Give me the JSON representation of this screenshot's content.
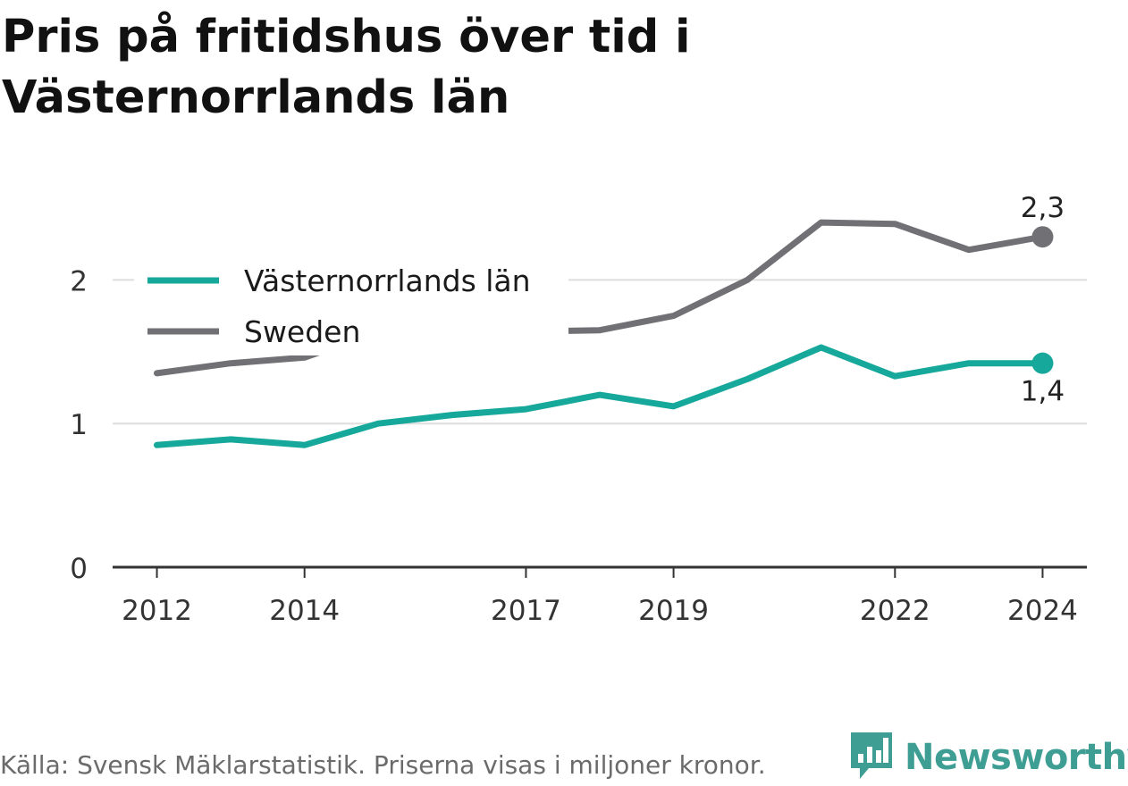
{
  "title": "Pris på fritidshus över tid i Västernorrlands län",
  "footer": {
    "source": "Källa: Svensk Mäklarstatistik. Priserna visas i miljoner kronor."
  },
  "logo": {
    "text": "Newsworthy",
    "icon": "newsworthy-logo-icon"
  },
  "colors": {
    "series_region": "#16a89a",
    "series_sweden": "#717074",
    "grid": "#dedede",
    "axis": "#333333"
  },
  "chart_data": {
    "type": "line",
    "x": [
      2012,
      2013,
      2014,
      2015,
      2016,
      2017,
      2018,
      2019,
      2020,
      2021,
      2022,
      2023,
      2024
    ],
    "x_ticks": [
      "2012",
      "2014",
      "2017",
      "2019",
      "2022",
      "2024"
    ],
    "y_ticks": [
      "0",
      "1",
      "2"
    ],
    "ylim": [
      0,
      2.55
    ],
    "xlim": [
      2011.4,
      2024.6
    ],
    "grid": true,
    "legend": "top-left",
    "series": [
      {
        "name": "Västernorrlands län",
        "values": [
          0.85,
          0.89,
          0.85,
          1.0,
          1.06,
          1.1,
          1.2,
          1.12,
          1.31,
          1.53,
          1.33,
          1.42,
          1.42
        ],
        "end_label": "1,4",
        "end_label_position": "below"
      },
      {
        "name": "Sweden",
        "values": [
          1.35,
          1.42,
          1.46,
          1.64,
          1.58,
          1.64,
          1.65,
          1.75,
          2.0,
          2.4,
          2.39,
          2.21,
          2.3
        ],
        "end_label": "2,3",
        "end_label_position": "above"
      }
    ]
  }
}
